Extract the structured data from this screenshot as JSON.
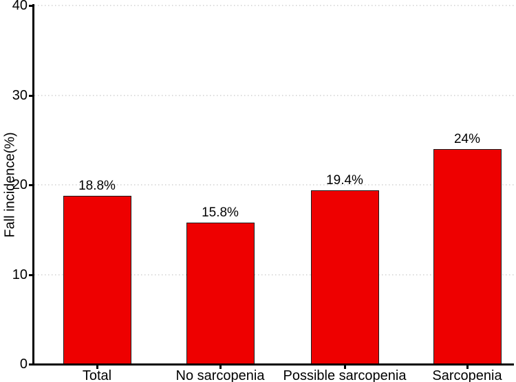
{
  "chart_data": {
    "type": "bar",
    "title": "",
    "xlabel": "",
    "ylabel": "Fall incidence(%)",
    "categories": [
      "Total",
      "No sarcopenia",
      "Possible sarcopenia",
      "Sarcopenia"
    ],
    "values": [
      18.8,
      15.8,
      19.4,
      24
    ],
    "value_labels": [
      "18.8%",
      "15.8%",
      "19.4%",
      "24%"
    ],
    "ylim": [
      0,
      40
    ],
    "yticks": [
      0,
      10,
      20,
      30,
      40
    ],
    "ytick_labels": [
      "0",
      "10",
      "20",
      "30",
      "40"
    ],
    "grid": "horizontal-dotted",
    "legend": "none",
    "bar_color": "#EE0000",
    "bar_border_color": "#1A1A1A",
    "axis_color": "#000000",
    "gridline_color": "#DCDCDC",
    "text_color": "#000000",
    "background_color": "#FFFFFF"
  }
}
